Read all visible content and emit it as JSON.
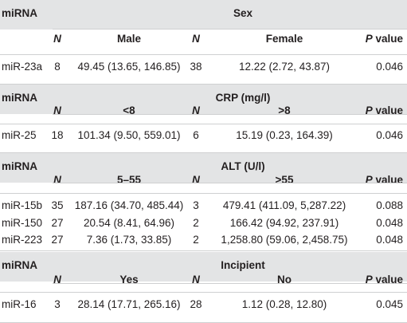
{
  "sections": [
    {
      "row_label": "miRNA",
      "group_title": "Sex",
      "headers": {
        "n1": "N",
        "g1": "Male",
        "n2": "N",
        "g2": "Female",
        "p": "P value"
      },
      "rows": [
        {
          "mirna": "miR-23a",
          "n1": "8",
          "v1": "49.45 (13.65, 146.85)",
          "n2": "38",
          "v2": "12.22 (2.72, 43.87)",
          "p": "0.046"
        }
      ]
    },
    {
      "row_label": "miRNA",
      "group_title": "CRP (mg/l)",
      "headers": {
        "n1": "N",
        "g1": "<8",
        "n2": "N",
        "g2": ">8",
        "p": "P value"
      },
      "rows": [
        {
          "mirna": "miR-25",
          "n1": "18",
          "v1": "101.34 (9.50, 559.01)",
          "n2": "6",
          "v2": "15.19 (0.23, 164.39)",
          "p": "0.046"
        }
      ]
    },
    {
      "row_label": "miRNA",
      "group_title": "ALT (U/l)",
      "headers": {
        "n1": "N",
        "g1": "5–55",
        "n2": "N",
        "g2": ">55",
        "p": "P value"
      },
      "rows": [
        {
          "mirna": "miR-15b",
          "n1": "35",
          "v1": "187.16 (34.70, 485.44)",
          "n2": "3",
          "v2": "479.41 (411.09, 5,287.22)",
          "p": "0.088"
        },
        {
          "mirna": "miR-150",
          "n1": "27",
          "v1": "20.54 (8.41, 64.96)",
          "n2": "2",
          "v2": "166.42 (94.92, 237.91)",
          "p": "0.048"
        },
        {
          "mirna": "miR-223",
          "n1": "27",
          "v1": "7.36 (1.73, 33.85)",
          "n2": "2",
          "v2": "1,258.80 (59.06, 2,458.75)",
          "p": "0.048"
        }
      ]
    },
    {
      "row_label": "miRNA",
      "group_title": "Incipient",
      "headers": {
        "n1": "N",
        "g1": "Yes",
        "n2": "N",
        "g2": "No",
        "p": "P value"
      },
      "rows": [
        {
          "mirna": "miR-16",
          "n1": "3",
          "v1": "28.14 (17.71, 265.16)",
          "n2": "28",
          "v2": "1.12 (0.28, 12.80)",
          "p": "0.045"
        }
      ]
    }
  ]
}
